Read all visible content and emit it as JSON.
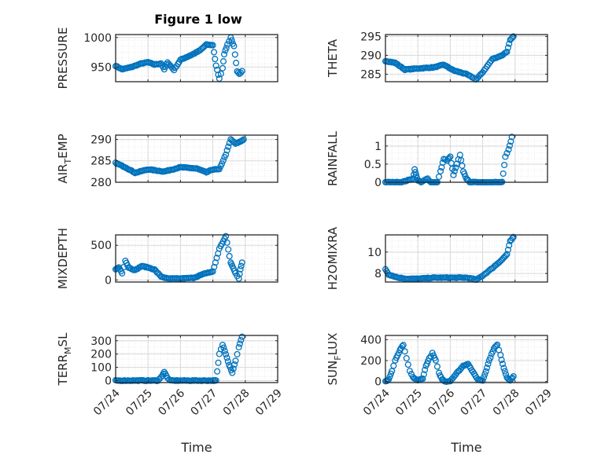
{
  "figure": {
    "title": "Figure 1 low"
  },
  "colors": {
    "marker": "#0072BD",
    "axis": "#262626",
    "grid": "#d9d9d9",
    "minor_grid": "#e6e6e6"
  },
  "chart_data": [
    {
      "type": "scatter",
      "ylabel": "PRESSURE",
      "xlabel": "",
      "xlim": [
        0,
        5
      ],
      "ylim": [
        925,
        1005
      ],
      "yticks": [
        950,
        1000
      ],
      "xticks": [
        "07/24",
        "07/25",
        "07/26",
        "07/27",
        "07/28",
        "07/29"
      ],
      "show_xticklabels": false,
      "key_x": [
        0,
        0.2,
        0.5,
        0.8,
        1.0,
        1.2,
        1.4,
        1.5,
        1.6,
        1.8,
        2.0,
        2.2,
        2.4,
        2.6,
        2.8,
        3.0,
        3.1,
        3.2,
        3.3,
        3.35,
        3.45,
        3.55,
        3.65,
        3.75,
        3.82,
        3.9
      ],
      "key_y": [
        952,
        946,
        950,
        956,
        958,
        954,
        956,
        946,
        958,
        945,
        962,
        967,
        972,
        978,
        988,
        987,
        952,
        930,
        948,
        972,
        988,
        1000,
        985,
        942,
        938,
        943
      ]
    },
    {
      "type": "scatter",
      "ylabel": "THETA",
      "xlabel": "",
      "xlim": [
        0,
        5
      ],
      "ylim": [
        283,
        295.5
      ],
      "yticks": [
        285,
        290,
        295
      ],
      "xticks": [
        "07/24",
        "07/25",
        "07/26",
        "07/27",
        "07/28",
        "07/29"
      ],
      "show_xticklabels": false,
      "key_x": [
        0,
        0.3,
        0.6,
        1.0,
        1.5,
        1.8,
        2.1,
        2.5,
        2.8,
        3.0,
        3.3,
        3.6,
        3.75,
        3.85,
        3.95
      ],
      "key_y": [
        288.5,
        288,
        286.2,
        286.5,
        286.8,
        287.5,
        286,
        285,
        283.6,
        285.5,
        289,
        290,
        291,
        294,
        295
      ]
    },
    {
      "type": "scatter",
      "ylabel": "AIR_TEMP",
      "ylabel_parts": [
        "AIR",
        "T",
        "EMP"
      ],
      "xlabel": "",
      "xlim": [
        0,
        5
      ],
      "ylim": [
        280,
        291
      ],
      "yticks": [
        280,
        285,
        290
      ],
      "xticks": [
        "07/24",
        "07/25",
        "07/26",
        "07/27",
        "07/28",
        "07/29"
      ],
      "show_xticklabels": false,
      "key_x": [
        0,
        0.3,
        0.6,
        1.0,
        1.5,
        2.0,
        2.5,
        2.8,
        3.0,
        3.2,
        3.4,
        3.55,
        3.7,
        3.85,
        3.95
      ],
      "key_y": [
        284.5,
        283.5,
        282.2,
        283,
        282.5,
        283.5,
        283.2,
        282.3,
        283,
        283,
        286.5,
        290,
        289,
        289.5,
        290
      ]
    },
    {
      "type": "scatter",
      "ylabel": "RAINFALL",
      "xlabel": "",
      "xlim": [
        0,
        5
      ],
      "ylim": [
        0,
        1.3
      ],
      "yticks": [
        0,
        0.5,
        1
      ],
      "xticks": [
        "07/24",
        "07/25",
        "07/26",
        "07/27",
        "07/28",
        "07/29"
      ],
      "show_xticklabels": false,
      "key_x": [
        0,
        0.5,
        0.85,
        0.9,
        0.95,
        1.0,
        1.1,
        1.3,
        1.4,
        1.5,
        1.6,
        1.7,
        1.8,
        1.9,
        2.0,
        2.1,
        2.2,
        2.3,
        2.4,
        2.5,
        2.6,
        2.7,
        3.0,
        3.5,
        3.6,
        3.7,
        3.8,
        3.9
      ],
      "key_y": [
        0,
        0,
        0.1,
        0.35,
        0.2,
        0.05,
        0,
        0.1,
        0,
        0,
        0,
        0.3,
        0.65,
        0.6,
        0.7,
        0.2,
        0.5,
        0.75,
        0.3,
        0.1,
        0,
        0,
        0,
        0,
        0,
        0.7,
        0.9,
        1.25
      ]
    },
    {
      "type": "scatter",
      "ylabel": "MIXDEPTH",
      "xlabel": "",
      "xlim": [
        0,
        5
      ],
      "ylim": [
        -30,
        650
      ],
      "yticks": [
        0,
        500
      ],
      "xticks": [
        "07/24",
        "07/25",
        "07/26",
        "07/27",
        "07/28",
        "07/29"
      ],
      "show_xticklabels": false,
      "key_x": [
        0,
        0.1,
        0.2,
        0.3,
        0.4,
        0.6,
        0.8,
        1.0,
        1.2,
        1.4,
        1.6,
        1.8,
        2.0,
        2.4,
        2.8,
        3.0,
        3.2,
        3.4,
        3.55,
        3.6,
        3.7,
        3.8,
        3.85,
        3.9
      ],
      "key_y": [
        150,
        180,
        100,
        280,
        180,
        140,
        200,
        180,
        150,
        50,
        20,
        20,
        20,
        30,
        100,
        120,
        450,
        630,
        250,
        200,
        100,
        20,
        150,
        250
      ]
    },
    {
      "type": "scatter",
      "ylabel": "H2OMIXRA",
      "xlabel": "",
      "xlim": [
        0,
        5
      ],
      "ylim": [
        7.2,
        11.6
      ],
      "yticks": [
        8,
        10
      ],
      "xticks": [
        "07/24",
        "07/25",
        "07/26",
        "07/27",
        "07/28",
        "07/29"
      ],
      "show_xticklabels": false,
      "key_x": [
        0,
        0.1,
        0.2,
        0.4,
        0.7,
        1.0,
        1.5,
        2.0,
        2.5,
        2.7,
        2.8,
        3.0,
        3.3,
        3.6,
        3.75,
        3.85,
        3.95
      ],
      "key_y": [
        8.4,
        7.9,
        7.8,
        7.6,
        7.5,
        7.5,
        7.6,
        7.6,
        7.6,
        7.5,
        7.4,
        7.8,
        8.5,
        9.3,
        9.8,
        11.0,
        11.4
      ]
    },
    {
      "type": "scatter",
      "ylabel": "TERR_MSL",
      "ylabel_parts": [
        "TERR",
        "M",
        "SL"
      ],
      "xlabel": "Time",
      "xlim": [
        0,
        5
      ],
      "ylim": [
        -15,
        340
      ],
      "yticks": [
        0,
        100,
        200,
        300
      ],
      "xticks": [
        "07/24",
        "07/25",
        "07/26",
        "07/27",
        "07/28",
        "07/29"
      ],
      "show_xticklabels": true,
      "key_x": [
        0,
        0.5,
        1.0,
        1.3,
        1.4,
        1.5,
        1.6,
        1.7,
        2.0,
        2.5,
        3.0,
        3.1,
        3.2,
        3.3,
        3.4,
        3.5,
        3.6,
        3.7,
        3.8,
        3.9
      ],
      "key_y": [
        0,
        0,
        0,
        0,
        25,
        65,
        20,
        0,
        0,
        0,
        0,
        0,
        200,
        270,
        200,
        120,
        60,
        150,
        250,
        330
      ]
    },
    {
      "type": "scatter",
      "ylabel": "SUN_FLUX",
      "ylabel_parts": [
        "SUN",
        "F",
        "LUX"
      ],
      "xlabel": "Time",
      "xlim": [
        0,
        5
      ],
      "ylim": [
        -10,
        440
      ],
      "yticks": [
        0,
        200,
        400
      ],
      "xticks": [
        "07/24",
        "07/25",
        "07/26",
        "07/27",
        "07/28",
        "07/29"
      ],
      "show_xticklabels": true,
      "key_x": [
        0,
        0.1,
        0.2,
        0.3,
        0.45,
        0.55,
        0.65,
        0.75,
        0.85,
        1.0,
        1.15,
        1.25,
        1.35,
        1.45,
        1.55,
        1.65,
        1.75,
        1.85,
        2.0,
        2.2,
        2.4,
        2.55,
        2.7,
        2.85,
        3.0,
        3.1,
        3.2,
        3.35,
        3.45,
        3.55,
        3.65,
        3.75,
        3.85,
        3.95
      ],
      "key_y": [
        0,
        20,
        100,
        200,
        300,
        350,
        220,
        100,
        40,
        10,
        30,
        150,
        220,
        270,
        200,
        80,
        20,
        0,
        5,
        80,
        150,
        170,
        90,
        20,
        10,
        100,
        200,
        320,
        350,
        250,
        130,
        40,
        10,
        50
      ]
    }
  ]
}
